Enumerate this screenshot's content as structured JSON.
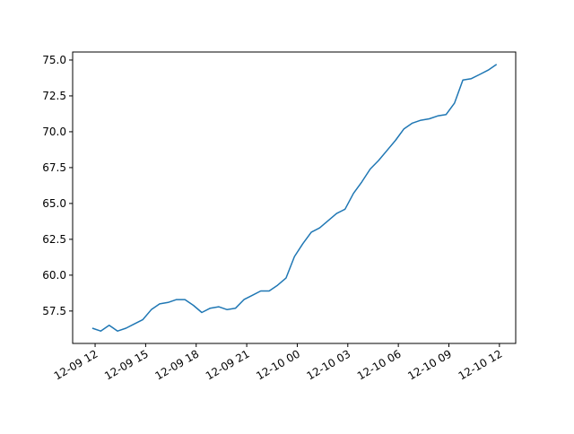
{
  "chart_data": {
    "type": "line",
    "x": [
      "12-09 11:50",
      "12-09 12:20",
      "12-09 12:50",
      "12-09 13:20",
      "12-09 13:50",
      "12-09 14:20",
      "12-09 14:50",
      "12-09 15:20",
      "12-09 15:50",
      "12-09 16:20",
      "12-09 16:50",
      "12-09 17:20",
      "12-09 17:50",
      "12-09 18:20",
      "12-09 18:50",
      "12-09 19:20",
      "12-09 19:50",
      "12-09 20:20",
      "12-09 20:50",
      "12-09 21:20",
      "12-09 21:50",
      "12-09 22:20",
      "12-09 22:50",
      "12-09 23:20",
      "12-09 23:50",
      "12-10 00:20",
      "12-10 00:50",
      "12-10 01:20",
      "12-10 01:50",
      "12-10 02:20",
      "12-10 02:50",
      "12-10 03:20",
      "12-10 03:50",
      "12-10 04:20",
      "12-10 04:50",
      "12-10 05:20",
      "12-10 05:50",
      "12-10 06:20",
      "12-10 06:50",
      "12-10 07:20",
      "12-10 07:50",
      "12-10 08:20",
      "12-10 08:50",
      "12-10 09:20",
      "12-10 09:50",
      "12-10 10:20",
      "12-10 10:50",
      "12-10 11:20",
      "12-10 11:50"
    ],
    "series": [
      {
        "color": "#1f77b4",
        "values": [
          56.3,
          56.1,
          56.5,
          56.1,
          56.3,
          56.6,
          56.9,
          57.6,
          58.0,
          58.1,
          58.3,
          58.3,
          57.9,
          57.4,
          57.7,
          57.8,
          57.6,
          57.7,
          58.3,
          58.6,
          58.9,
          58.9,
          59.3,
          59.8,
          61.3,
          62.2,
          63.0,
          63.3,
          63.8,
          64.3,
          64.6,
          65.7,
          66.5,
          67.4,
          68.0,
          68.7,
          69.4,
          70.2,
          70.6,
          70.8,
          70.9,
          71.1,
          71.2,
          72.0,
          73.6,
          73.7,
          74.0,
          74.3,
          74.7
        ]
      }
    ],
    "xlim": [
      "12-09 10:40",
      "12-10 12:58"
    ],
    "xticks": [
      "12-09 12",
      "12-09 15",
      "12-09 18",
      "12-09 21",
      "12-10 00",
      "12-10 03",
      "12-10 06",
      "12-10 09",
      "12-10 12"
    ],
    "ylim": [
      55.24,
      75.56
    ],
    "yticks": [
      {
        "value": 57.5,
        "label": "57.5"
      },
      {
        "value": 60,
        "label": "60.0"
      },
      {
        "value": 62.5,
        "label": "62.5"
      },
      {
        "value": 65,
        "label": "65.0"
      },
      {
        "value": 67.5,
        "label": "67.5"
      },
      {
        "value": 70,
        "label": "70.0"
      },
      {
        "value": 72.5,
        "label": "72.5"
      },
      {
        "value": 75,
        "label": "75.0"
      }
    ],
    "grid": false
  }
}
